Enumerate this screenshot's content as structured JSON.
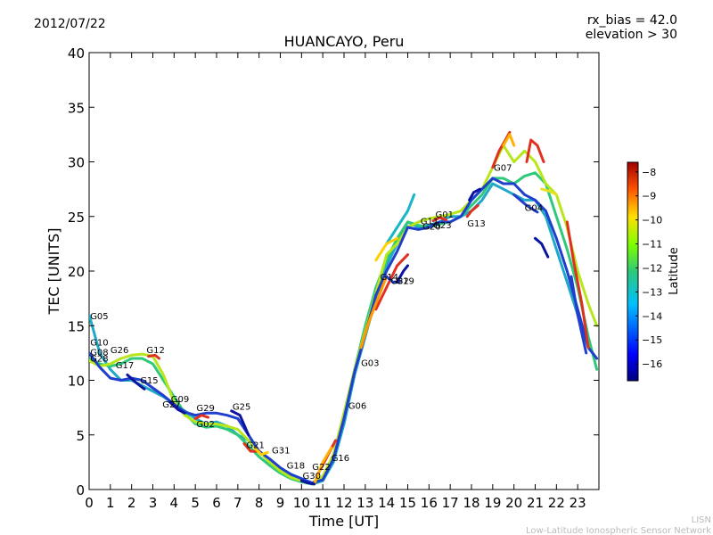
{
  "header": {
    "date": "2012/07/22",
    "rx_bias": "rx_bias = 42.0",
    "elevation": "elevation > 30"
  },
  "footer": {
    "line1": "LISN",
    "line2": "Low-Latitude Ionospheric Sensor Network"
  },
  "colorbar": {
    "label": "Latitude",
    "ticks": [
      "−8",
      "−9",
      "−10",
      "−11",
      "−12",
      "−13",
      "−14",
      "−15",
      "−16"
    ],
    "tick_values": [
      -8,
      -9,
      -10,
      -11,
      -12,
      -13,
      -14,
      -15,
      -16
    ],
    "range": [
      -16.7,
      -7.6
    ]
  },
  "chart_data": {
    "type": "line",
    "title": "HUANCAYO, Peru",
    "xlabel": "Time [UT]",
    "ylabel": "TEC [UNITS]",
    "xlim": [
      0,
      24
    ],
    "ylim": [
      0,
      40
    ],
    "xticks": [
      "0",
      "1",
      "2",
      "3",
      "4",
      "5",
      "6",
      "7",
      "8",
      "9",
      "10",
      "11",
      "12",
      "13",
      "14",
      "15",
      "16",
      "17",
      "18",
      "19",
      "20",
      "21",
      "22",
      "23"
    ],
    "yticks": [
      "0",
      "5",
      "10",
      "15",
      "20",
      "25",
      "30",
      "35",
      "40"
    ],
    "series": [
      {
        "name": "main-a",
        "color": "#1fa8c8",
        "x": [
          0,
          0.5,
          1,
          1.5,
          2,
          2.5,
          3,
          3.5,
          4,
          4.5,
          5,
          5.5,
          6,
          6.5,
          7,
          7.5,
          8,
          8.5,
          9,
          9.5,
          10,
          10.5,
          11,
          11.5,
          12,
          12.5,
          13,
          13.5,
          14,
          14.5,
          15,
          15.5,
          16,
          16.5,
          17,
          17.5,
          18,
          18.5,
          19,
          19.5,
          20,
          20.5,
          21,
          21.5,
          22,
          22.5,
          23,
          23.5,
          23.9
        ],
        "y": [
          16,
          12.5,
          11,
          10,
          10,
          9.5,
          9,
          8.5,
          7.8,
          7.2,
          6.5,
          6,
          6.2,
          5.8,
          5,
          4.5,
          3.5,
          2.5,
          1.8,
          1.2,
          0.8,
          0.5,
          0.8,
          2.5,
          6,
          10.5,
          14,
          17.5,
          20.5,
          22.5,
          24.5,
          24,
          24.2,
          24.5,
          25,
          25,
          25.5,
          26.5,
          28,
          27.5,
          27,
          26.5,
          26.5,
          25,
          22,
          19,
          16,
          13,
          12
        ]
      },
      {
        "name": "main-b",
        "color": "#2ec97a",
        "x": [
          0,
          0.5,
          1,
          1.5,
          2,
          2.5,
          3,
          3.5,
          4,
          4.5,
          5,
          5.5,
          6,
          6.5,
          7,
          7.5,
          8,
          8.5,
          9,
          9.5,
          10,
          10.5,
          11,
          11.5,
          12,
          12.5,
          13,
          13.5,
          14,
          14.5,
          15,
          15.5,
          16,
          16.5,
          17,
          17.5,
          18,
          18.5,
          19,
          19.5,
          20,
          20.5,
          21,
          21.5,
          22,
          22.5,
          23,
          23.5,
          23.9
        ],
        "y": [
          12,
          11.5,
          11.3,
          11.5,
          12,
          12,
          11.5,
          10,
          8.5,
          7,
          6,
          5.7,
          5.8,
          5.5,
          5,
          4,
          3,
          2.2,
          1.5,
          1,
          0.7,
          0.5,
          1,
          3,
          7,
          11,
          15,
          18.5,
          21,
          23,
          24.5,
          24.2,
          24,
          24.3,
          24.5,
          25,
          26,
          27,
          28.5,
          28.5,
          28,
          28.7,
          29,
          28,
          25,
          22,
          18.5,
          14,
          11
        ]
      },
      {
        "name": "main-c",
        "color": "#b7e61a",
        "x": [
          0,
          0.5,
          1,
          1.5,
          2,
          2.5,
          3,
          3.5,
          4,
          4.5,
          5,
          5.5,
          6,
          6.5,
          7,
          7.5,
          8,
          8.5,
          9,
          9.5,
          10,
          10.5,
          11,
          11.5,
          12,
          12.5,
          13,
          13.5,
          14,
          14.5,
          15,
          15.5,
          16,
          16.5,
          17,
          17.5,
          18,
          18.5,
          19,
          19.5,
          20,
          20.5,
          21,
          21.5,
          22,
          22.5,
          23,
          23.5,
          23.9
        ],
        "y": [
          11.8,
          11.3,
          11.5,
          12,
          12.3,
          12.4,
          12.2,
          10.5,
          8,
          6.8,
          6.2,
          6,
          6,
          5.8,
          5.5,
          4.5,
          3.5,
          2.5,
          1.7,
          1.1,
          0.8,
          0.6,
          1.2,
          3.2,
          7,
          11,
          14.5,
          18,
          21.5,
          22.5,
          24,
          24.5,
          24.8,
          25,
          25.2,
          25.5,
          26.5,
          27.5,
          29.5,
          31.5,
          30,
          31,
          30,
          28,
          27,
          24,
          20,
          17,
          15
        ]
      },
      {
        "name": "main-d",
        "color": "#1f3fcc",
        "x": [
          0,
          0.5,
          1,
          1.5,
          2,
          2.5,
          3,
          3.5,
          4,
          4.5,
          5,
          5.5,
          6,
          6.5,
          7,
          7.5,
          8,
          8.5,
          9,
          9.5,
          10,
          10.5,
          11,
          11.5,
          12,
          12.5,
          13,
          13.5,
          14,
          14.5,
          15,
          15.5,
          16,
          16.5,
          17,
          17.5,
          18,
          18.5,
          19,
          19.5,
          20,
          20.5,
          21,
          21.5,
          22,
          22.5,
          23,
          23.5,
          23.9
        ],
        "y": [
          12.5,
          11.2,
          10.2,
          10,
          10.2,
          10,
          9.3,
          8.6,
          7.8,
          7.1,
          6.8,
          7,
          7,
          6.8,
          6.5,
          5,
          3.5,
          2.8,
          2,
          1.4,
          1,
          0.6,
          0.9,
          2.8,
          6.5,
          10.8,
          14.2,
          17.8,
          20,
          21.8,
          24,
          23.8,
          24,
          24.5,
          24.5,
          25,
          26.5,
          27.5,
          28.5,
          28,
          28,
          27,
          26.5,
          25.5,
          23,
          20,
          16.5,
          13,
          12
        ]
      },
      {
        "name": "short-1",
        "color": "#e03020",
        "x": [
          13.5,
          14,
          14.5,
          15
        ],
        "y": [
          16.5,
          18.5,
          20.5,
          21.5
        ]
      },
      {
        "name": "short-2",
        "color": "#ff9900",
        "x": [
          12.8,
          13.2,
          13.6,
          14
        ],
        "y": [
          13,
          15.5,
          17.5,
          19.5
        ]
      },
      {
        "name": "short-3",
        "color": "#1f3fcc",
        "x": [
          14,
          14.3,
          14.6
        ],
        "y": [
          19.5,
          19,
          19
        ]
      },
      {
        "name": "short-4",
        "color": "#0a14a0",
        "x": [
          14.5,
          14.8,
          15
        ],
        "y": [
          19,
          20,
          20.5
        ]
      },
      {
        "name": "short-5",
        "color": "#19b5c8",
        "x": [
          14,
          14.5,
          15,
          15.3
        ],
        "y": [
          22.5,
          24,
          25.5,
          27
        ]
      },
      {
        "name": "short-6",
        "color": "#ffd000",
        "x": [
          13.5,
          14,
          14.5
        ],
        "y": [
          21,
          22.5,
          23
        ]
      },
      {
        "name": "short-7",
        "color": "#e03020",
        "x": [
          19,
          19.3,
          19.6,
          19.8
        ],
        "y": [
          29.5,
          31,
          32,
          32.7
        ]
      },
      {
        "name": "short-8",
        "color": "#ffb000",
        "x": [
          19.5,
          19.8,
          20
        ],
        "y": [
          31.5,
          32.5,
          31.5
        ]
      },
      {
        "name": "short-9",
        "color": "#e03020",
        "x": [
          20.6,
          20.8,
          21.1,
          21.4
        ],
        "y": [
          30,
          32,
          31.5,
          30
        ]
      },
      {
        "name": "short-10",
        "color": "#e8e020",
        "x": [
          21.3,
          21.7,
          22
        ],
        "y": [
          27.5,
          27.3,
          27
        ]
      },
      {
        "name": "short-11",
        "color": "#0a14a0",
        "x": [
          21,
          21.3,
          21.6
        ],
        "y": [
          23,
          22.5,
          21.3
        ]
      },
      {
        "name": "short-12",
        "color": "#1f3fcc",
        "x": [
          20,
          20.6,
          21.1
        ],
        "y": [
          27,
          26,
          25.4
        ]
      },
      {
        "name": "short-13",
        "color": "#e03020",
        "x": [
          22.5,
          22.8,
          23.2,
          23.5
        ],
        "y": [
          24.5,
          21,
          17,
          13
        ]
      },
      {
        "name": "short-14",
        "color": "#1f3fcc",
        "x": [
          22.7,
          23,
          23.4
        ],
        "y": [
          19.5,
          16,
          12.5
        ]
      },
      {
        "name": "short-15",
        "color": "#0a14a0",
        "x": [
          6.7,
          7.1,
          7.5
        ],
        "y": [
          7.2,
          6.8,
          5
        ]
      },
      {
        "name": "short-16",
        "color": "#e03020",
        "x": [
          7.3,
          7.6,
          8
        ],
        "y": [
          4.2,
          3.5,
          3.5
        ]
      },
      {
        "name": "short-17",
        "color": "#ffd000",
        "x": [
          7.8,
          8.1,
          8.4
        ],
        "y": [
          3.8,
          3.2,
          3.4
        ]
      },
      {
        "name": "short-18",
        "color": "#e03020",
        "x": [
          10.8,
          11.2,
          11.6
        ],
        "y": [
          1.5,
          3,
          4.5
        ]
      },
      {
        "name": "short-19",
        "color": "#ffb000",
        "x": [
          10.6,
          11,
          11.4
        ],
        "y": [
          0.5,
          2.5,
          3.8
        ]
      },
      {
        "name": "short-20",
        "color": "#0a14a0",
        "x": [
          10,
          10.3,
          10.6
        ],
        "y": [
          0.8,
          0.6,
          0.5
        ]
      },
      {
        "name": "short-21",
        "color": "#e03020",
        "x": [
          2.8,
          3.1,
          3.3
        ],
        "y": [
          12.2,
          12.3,
          12
        ]
      },
      {
        "name": "short-22",
        "color": "#0a14a0",
        "x": [
          1.8,
          2.2,
          2.6
        ],
        "y": [
          10.5,
          9.8,
          9.2
        ]
      },
      {
        "name": "short-23",
        "color": "#0a14a0",
        "x": [
          3.8,
          4.2,
          4.5
        ],
        "y": [
          8,
          7.3,
          7
        ]
      },
      {
        "name": "short-24",
        "color": "#e03020",
        "x": [
          5,
          5.3,
          5.6
        ],
        "y": [
          6.5,
          6.8,
          6.6
        ]
      },
      {
        "name": "short-25",
        "color": "#e03020",
        "x": [
          16.2,
          16.5,
          16.8
        ],
        "y": [
          24.6,
          24.9,
          24.7
        ]
      },
      {
        "name": "short-26",
        "color": "#e03020",
        "x": [
          17.8,
          18,
          18.3
        ],
        "y": [
          25,
          25.5,
          26
        ]
      },
      {
        "name": "short-27",
        "color": "#0a14a0",
        "x": [
          17.9,
          18.1,
          18.4
        ],
        "y": [
          26.5,
          27.2,
          27.5
        ]
      }
    ],
    "annotations": [
      {
        "text": "G05",
        "x": 0.05,
        "y": 15.6
      },
      {
        "text": "G10",
        "x": 0.05,
        "y": 13.2
      },
      {
        "text": "G26",
        "x": 1.0,
        "y": 12.5
      },
      {
        "text": "G08",
        "x": 0.05,
        "y": 12.3
      },
      {
        "text": "G28",
        "x": 0.05,
        "y": 11.7
      },
      {
        "text": "G17",
        "x": 1.25,
        "y": 11.1
      },
      {
        "text": "G12",
        "x": 2.7,
        "y": 12.5
      },
      {
        "text": "G15",
        "x": 2.4,
        "y": 9.7
      },
      {
        "text": "G27",
        "x": 3.45,
        "y": 7.5
      },
      {
        "text": "G09",
        "x": 3.85,
        "y": 8.0
      },
      {
        "text": "G29",
        "x": 5.05,
        "y": 7.2
      },
      {
        "text": "G02",
        "x": 5.05,
        "y": 5.7
      },
      {
        "text": "G25",
        "x": 6.75,
        "y": 7.3
      },
      {
        "text": "G21",
        "x": 7.4,
        "y": 3.8
      },
      {
        "text": "G31",
        "x": 8.6,
        "y": 3.3
      },
      {
        "text": "G18",
        "x": 9.3,
        "y": 1.9
      },
      {
        "text": "G30",
        "x": 10.05,
        "y": 1.0
      },
      {
        "text": "G22",
        "x": 10.5,
        "y": 1.8
      },
      {
        "text": "G16",
        "x": 11.4,
        "y": 2.6
      },
      {
        "text": "G06",
        "x": 12.2,
        "y": 7.4
      },
      {
        "text": "G03",
        "x": 12.8,
        "y": 11.3
      },
      {
        "text": "G14",
        "x": 13.7,
        "y": 19.2
      },
      {
        "text": "G32",
        "x": 14.2,
        "y": 18.8
      },
      {
        "text": "G19",
        "x": 14.45,
        "y": 18.8
      },
      {
        "text": "G11",
        "x": 15.6,
        "y": 24.3
      },
      {
        "text": "G20",
        "x": 15.7,
        "y": 23.8
      },
      {
        "text": "G23",
        "x": 16.2,
        "y": 23.9
      },
      {
        "text": "G01",
        "x": 16.3,
        "y": 24.9
      },
      {
        "text": "G13",
        "x": 17.8,
        "y": 24.1
      },
      {
        "text": "G07",
        "x": 19.05,
        "y": 29.2
      },
      {
        "text": "G04",
        "x": 20.5,
        "y": 25.5
      }
    ]
  }
}
